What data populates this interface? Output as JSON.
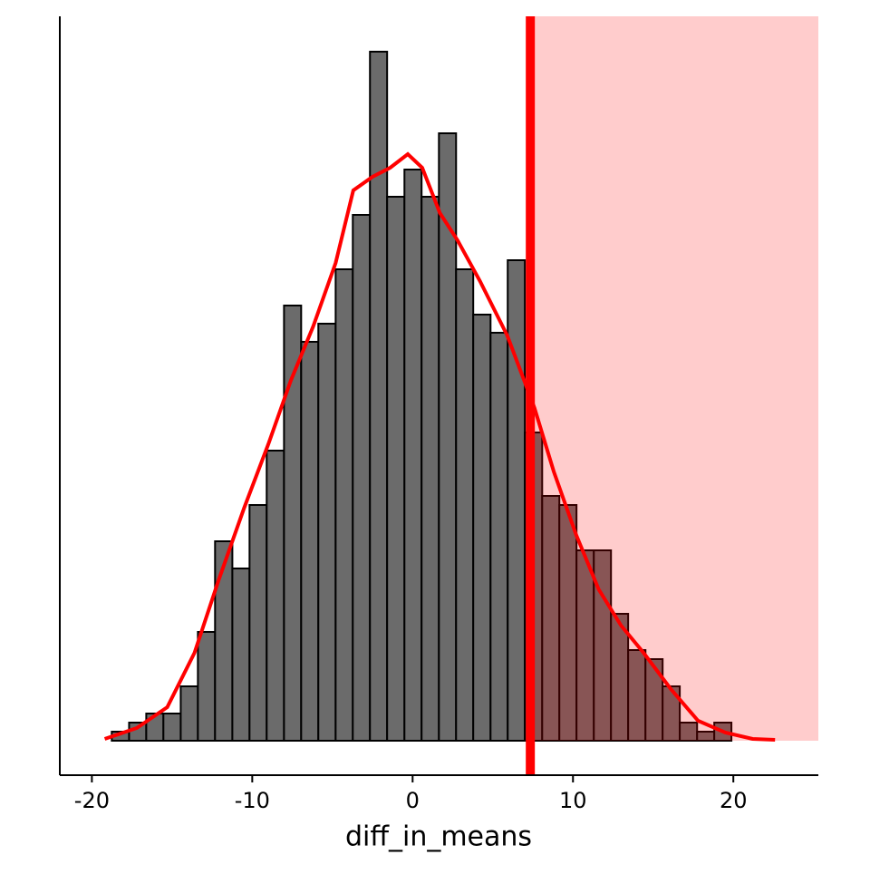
{
  "chart_data": {
    "type": "histogram",
    "x_label": "diff_in_means",
    "bins": [
      -19.83,
      -18.76,
      -17.68,
      -16.61,
      -15.54,
      -14.46,
      -13.39,
      -12.32,
      -11.24,
      -10.17,
      -9.1,
      -8.02,
      -6.95,
      -5.88,
      -4.8,
      -3.73,
      -2.66,
      -1.59,
      -0.51,
      0.56,
      1.64,
      2.71,
      3.78,
      4.86,
      5.93,
      7.0,
      8.08,
      9.15,
      10.22,
      11.3,
      12.37,
      13.44,
      14.52,
      15.59,
      16.66,
      17.74,
      18.81,
      19.88,
      20.96,
      22.03,
      23.1
    ],
    "values": [
      0,
      1,
      2,
      3,
      3,
      6,
      12,
      22,
      19,
      26,
      32,
      48,
      44,
      46,
      52,
      58,
      76,
      60,
      63,
      60,
      67,
      52,
      47,
      45,
      53,
      34,
      27,
      26,
      21,
      21,
      14,
      10,
      9,
      6,
      2,
      1,
      2,
      0,
      0,
      0
    ],
    "color": "#6b6b6b",
    "density": {
      "color": "#ff0000",
      "x": [
        -19.2,
        -17.2,
        -15.3,
        -13.6,
        -12.1,
        -10.5,
        -9.0,
        -7.6,
        -6.2,
        -4.8,
        -3.7,
        -2.5,
        -1.4,
        -0.3,
        0.6,
        1.7,
        2.8,
        4.2,
        5.9,
        7.6,
        8.8,
        10.2,
        11.6,
        13.0,
        14.4,
        16.1,
        17.8,
        19.5,
        21.2,
        22.6
      ],
      "values": [
        0.2,
        1.4,
        3.7,
        9.7,
        17.7,
        25.7,
        32.7,
        39.7,
        45.7,
        52.7,
        60.7,
        62.2,
        63.2,
        64.7,
        63.2,
        58.2,
        55.2,
        50.7,
        44.7,
        36.7,
        29.7,
        22.7,
        16.7,
        12.7,
        9.7,
        5.7,
        2.2,
        0.9,
        0.2,
        0.1
      ]
    },
    "vline": {
      "value": 7.34,
      "color": "#ff0000",
      "shade_color": "#ff0000"
    },
    "xlim": [
      -22.0,
      25.3
    ],
    "ylim": [
      -3.8,
      79.9
    ],
    "xticks": [
      -20,
      -10,
      0,
      10,
      20
    ]
  }
}
